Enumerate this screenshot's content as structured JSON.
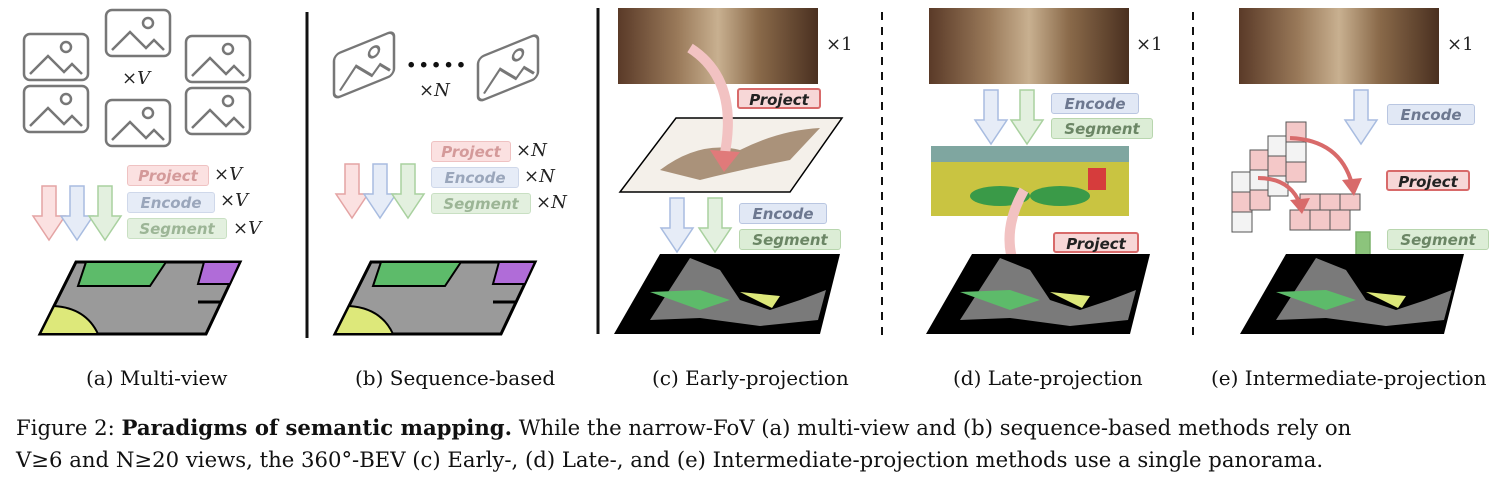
{
  "panels": {
    "a": {
      "caption": "(a) Multi-view",
      "images_mult": "×V",
      "project": "Project",
      "encode": "Encode",
      "segment": "Segment",
      "project_mult": "×V",
      "encode_mult": "×V",
      "segment_mult": "×V"
    },
    "b": {
      "caption": "(b) Sequence-based",
      "images_mult": "×N",
      "ellipsis": ".....",
      "project": "Project",
      "encode": "Encode",
      "segment": "Segment",
      "project_mult": "×N",
      "encode_mult": "×N",
      "segment_mult": "×N"
    },
    "c": {
      "caption": "(c) Early-projection",
      "pano_mult": "×1",
      "project": "Project",
      "encode": "Encode",
      "segment": "Segment"
    },
    "d": {
      "caption": "(d) Late-projection",
      "pano_mult": "×1",
      "encode": "Encode",
      "segment": "Segment",
      "project": "Project"
    },
    "e": {
      "caption": "(e) Intermediate-projection",
      "pano_mult": "×1",
      "encode": "Encode",
      "project": "Project",
      "segment": "Segment"
    }
  },
  "caption": {
    "prefix": "Figure 2: ",
    "bold": "Paradigms of semantic mapping.",
    "line1_rest": " While the narrow-FoV (a) multi-view and (b) sequence-based methods rely on",
    "line2": "V≥6 and N≥20 views, the 360°-BEV (c) Early-, (d) Late-, and (e) Intermediate-projection methods use a single panorama."
  },
  "colors": {
    "project": "#d86a6a",
    "encode": "#8fb0e0",
    "segment": "#8cc47c",
    "map_gray": "#9a9a9a",
    "map_green": "#5dbb6a",
    "map_purple": "#b06cd8",
    "map_yellow": "#dde87a"
  }
}
